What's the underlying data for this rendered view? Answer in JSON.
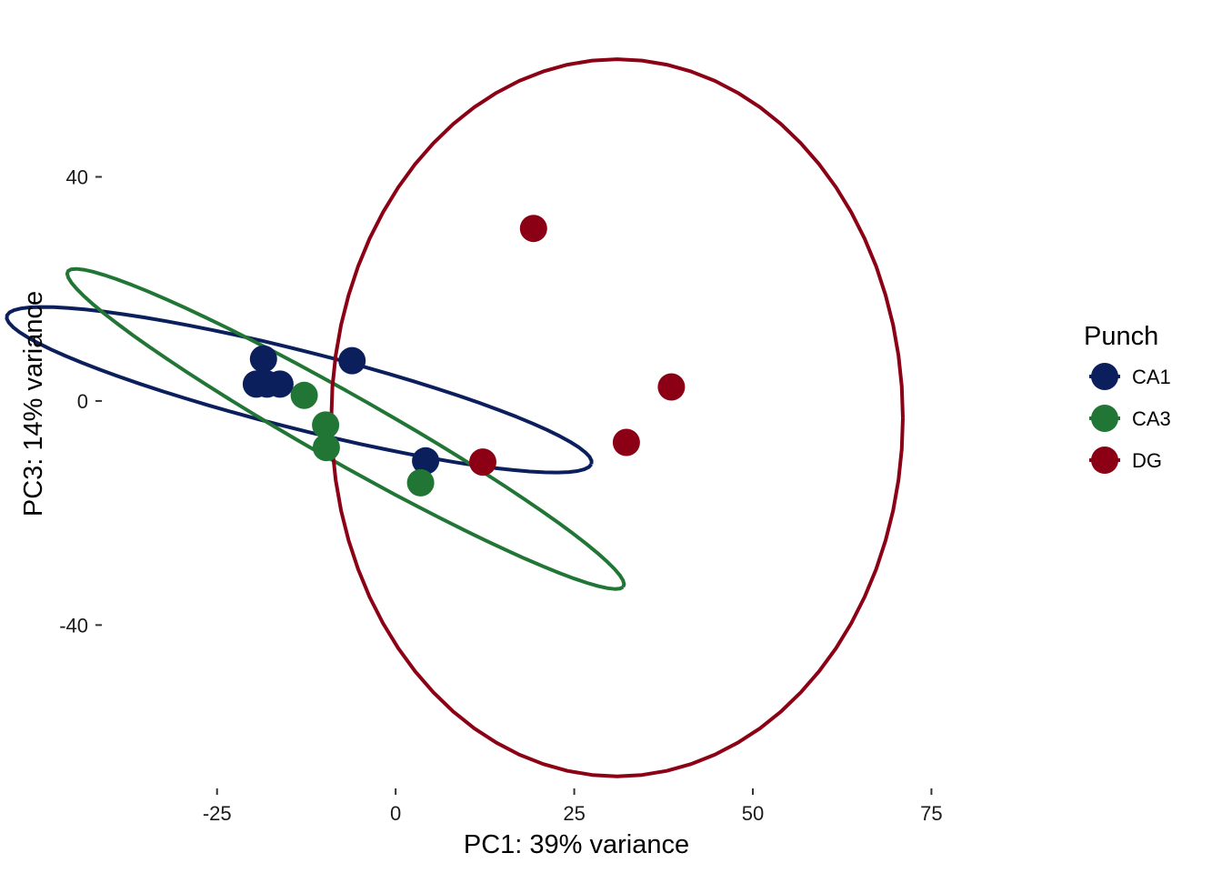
{
  "chart_data": {
    "type": "scatter",
    "title": "",
    "xlabel": "PC1: 39% variance",
    "ylabel": "PC3: 14% variance",
    "xlim": [
      -41,
      92
    ],
    "ylim": [
      -69,
      68
    ],
    "x_ticks": [
      -25,
      0,
      25,
      50,
      75
    ],
    "x_tick_labels": [
      "-25",
      "0",
      "25",
      "50",
      "75"
    ],
    "y_ticks": [
      40,
      0,
      -40
    ],
    "y_tick_labels": [
      "40",
      "0",
      "-40"
    ],
    "grid": false,
    "legend": {
      "title": "Punch",
      "position": "right"
    },
    "series": [
      {
        "name": "CA1",
        "color": "#0b1f5c",
        "points": [
          [
            -18.5,
            7.5
          ],
          [
            -19.5,
            3.0
          ],
          [
            -18.0,
            3.0
          ],
          [
            -16.2,
            3.0
          ],
          [
            -6.1,
            7.2
          ],
          [
            4.2,
            -10.7
          ]
        ],
        "ellipse": {
          "cx": -13.5,
          "cy": 2.0,
          "rx": 43.0,
          "ry": 6.8,
          "angle_deg": -18.0
        }
      },
      {
        "name": "CA3",
        "color": "#217535",
        "points": [
          [
            -12.8,
            1.0
          ],
          [
            -9.8,
            -4.3
          ],
          [
            -9.7,
            -8.3
          ],
          [
            3.5,
            -14.6
          ]
        ],
        "ellipse": {
          "cx": -7.0,
          "cy": -5.0,
          "rx": 48.0,
          "ry": 5.6,
          "angle_deg": -36.0
        }
      },
      {
        "name": "DG",
        "color": "#8b0015",
        "points": [
          [
            19.3,
            30.8
          ],
          [
            38.6,
            2.5
          ],
          [
            32.3,
            -7.4
          ],
          [
            12.2,
            -10.9
          ]
        ],
        "ellipse": {
          "cx": 31.0,
          "cy": -3.0,
          "rx": 40.0,
          "ry": 64.0,
          "angle_deg": 0.0
        }
      }
    ]
  }
}
